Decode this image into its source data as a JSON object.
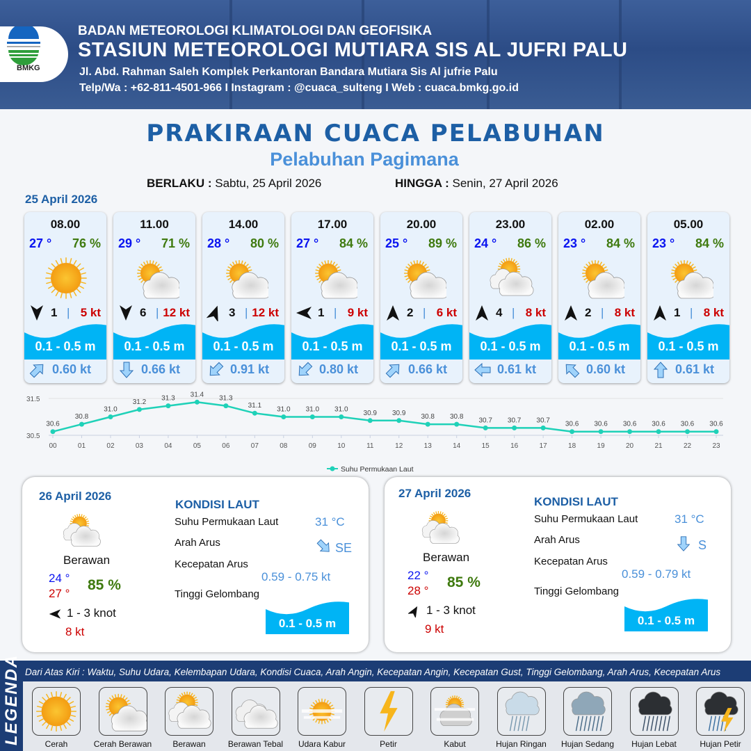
{
  "header": {
    "org": "BADAN METEOROLOGI KLIMATOLOGI DAN GEOFISIKA",
    "station": "STASIUN METEOROLOGI MUTIARA SIS AL JUFRI PALU",
    "address": "Jl. Abd. Rahman Saleh Komplek Perkantoran Bandara Mutiara Sis Al jufrie Palu",
    "contact": "Telp/Wa : +62-811-4501-966  I  Instagram : @cuaca_sulteng  I  Web : cuaca.bmkg.go.id",
    "logo_text": "BMKG"
  },
  "title": "PRAKIRAAN CUACA PELABUHAN",
  "subtitle": "Pelabuhan Pagimana",
  "validity": {
    "from_label": "BERLAKU :",
    "from": "Sabtu, 25 April 2026",
    "to_label": "HINGGA :",
    "to": "Senin, 27 April 2026"
  },
  "day1": {
    "date": "25 April 2026",
    "cards": [
      {
        "time": "08.00",
        "temp": "27 °",
        "hum": "76 %",
        "icon": "sun",
        "wind_dir": 180,
        "wind": "1",
        "gust": "5 kt",
        "wave": "0.1 - 0.5 m",
        "cur_dir": 45,
        "cur": "0.60 kt"
      },
      {
        "time": "11.00",
        "temp": "29 °",
        "hum": "71 %",
        "icon": "sun-cloud",
        "wind_dir": 180,
        "wind": "6",
        "gust": "12 kt",
        "wave": "0.1 - 0.5 m",
        "cur_dir": 180,
        "cur": "0.66 kt"
      },
      {
        "time": "14.00",
        "temp": "28 °",
        "hum": "80 %",
        "icon": "sun-cloud",
        "wind_dir": 20,
        "wind": "3",
        "gust": "12 kt",
        "wave": "0.1 - 0.5 m",
        "cur_dir": 225,
        "cur": "0.91 kt"
      },
      {
        "time": "17.00",
        "temp": "27 °",
        "hum": "84 %",
        "icon": "sun-cloud",
        "wind_dir": 270,
        "wind": "1",
        "gust": "9 kt",
        "wave": "0.1 - 0.5 m",
        "cur_dir": 225,
        "cur": "0.80 kt"
      },
      {
        "time": "20.00",
        "temp": "25 °",
        "hum": "89 %",
        "icon": "sun-cloud",
        "wind_dir": 0,
        "wind": "2",
        "gust": "6 kt",
        "wave": "0.1 - 0.5 m",
        "cur_dir": 45,
        "cur": "0.66 kt"
      },
      {
        "time": "23.00",
        "temp": "24 °",
        "hum": "86 %",
        "icon": "cloudy",
        "wind_dir": 0,
        "wind": "4",
        "gust": "8 kt",
        "wave": "0.1 - 0.5 m",
        "cur_dir": 270,
        "cur": "0.61 kt"
      },
      {
        "time": "02.00",
        "temp": "23 °",
        "hum": "84 %",
        "icon": "sun-cloud",
        "wind_dir": 0,
        "wind": "2",
        "gust": "8 kt",
        "wave": "0.1 - 0.5 m",
        "cur_dir": 315,
        "cur": "0.60 kt"
      },
      {
        "time": "05.00",
        "temp": "23 °",
        "hum": "84 %",
        "icon": "sun-cloud",
        "wind_dir": 0,
        "wind": "1",
        "gust": "8 kt",
        "wave": "0.1 - 0.5 m",
        "cur_dir": 0,
        "cur": "0.61 kt"
      }
    ]
  },
  "chart_data": {
    "type": "line",
    "x": [
      "00",
      "01",
      "02",
      "03",
      "04",
      "05",
      "06",
      "07",
      "08",
      "09",
      "10",
      "11",
      "12",
      "13",
      "14",
      "15",
      "16",
      "17",
      "18",
      "19",
      "20",
      "21",
      "22",
      "23"
    ],
    "series": [
      {
        "name": "Suhu Permukaan Laut",
        "values": [
          30.6,
          30.8,
          31.0,
          31.2,
          31.3,
          31.4,
          31.3,
          31.1,
          31.0,
          31.0,
          31.0,
          30.9,
          30.9,
          30.8,
          30.8,
          30.7,
          30.7,
          30.7,
          30.6,
          30.6,
          30.6,
          30.6,
          30.6,
          30.6
        ],
        "color": "#1fd1b8"
      }
    ],
    "yticks": [
      "31.5",
      "30.5"
    ],
    "ylim": [
      30.5,
      31.5
    ],
    "legend": "bottom",
    "grid": true
  },
  "days": [
    {
      "date": "26 April 2026",
      "cond": "Berawan",
      "tmin": "24 °",
      "tmax": "27 °",
      "hum": "85 %",
      "wind_dir": 270,
      "wind": "1 - 3 knot",
      "gust": "8 kt",
      "k_title": "KONDISI LAUT",
      "sst_label": "Suhu Permukaan Laut",
      "sst": "31 °C",
      "dir_label": "Arah Arus",
      "cur_dir_deg": 135,
      "cur_dir": "SE",
      "spd_label": "Kecepatan Arus",
      "spd": "0.59  - 0.75 kt",
      "wave_label": "Tinggi Gelombang",
      "wave": "0.1 - 0.5 m"
    },
    {
      "date": "27 April 2026",
      "cond": "Berawan",
      "tmin": "22 °",
      "tmax": "28 °",
      "hum": "85 %",
      "wind_dir": 30,
      "wind": "1 - 3 knot",
      "gust": "9 kt",
      "k_title": "KONDISI LAUT",
      "sst_label": "Suhu Permukaan Laut",
      "sst": "31 °C",
      "dir_label": "Arah Arus",
      "cur_dir_deg": 180,
      "cur_dir": "S",
      "spd_label": "Kecepatan Arus",
      "spd": "0.59  - 0.79 kt",
      "wave_label": "Tinggi Gelombang",
      "wave": "0.1 - 0.5 m"
    }
  ],
  "legend": {
    "title": "LEGENDA",
    "desc": "Dari Atas Kiri : Waktu, Suhu Udara, Kelembapan Udara, Kondisi Cuaca, Arah Angin, Kecepatan Angin, Kecepatan Gust, Tinggi Gelombang, Arah Arus, Kecepatan Arus",
    "items": [
      {
        "label": "Cerah",
        "icon": "sun"
      },
      {
        "label": "Cerah Berawan",
        "icon": "sun-cloud"
      },
      {
        "label": "Berawan",
        "icon": "cloudy"
      },
      {
        "label": "Berawan Tebal",
        "icon": "overcast"
      },
      {
        "label": "Udara Kabur",
        "icon": "haze"
      },
      {
        "label": "Petir",
        "icon": "lightning"
      },
      {
        "label": "Kabut",
        "icon": "fog"
      },
      {
        "label": "Hujan Ringan",
        "icon": "light-rain"
      },
      {
        "label": "Hujan Sedang",
        "icon": "moderate-rain"
      },
      {
        "label": "Hujan Lebat",
        "icon": "heavy-rain"
      },
      {
        "label": "Hujan Petir",
        "icon": "thunderstorm"
      }
    ]
  },
  "colors": {
    "title": "#1d5fa5",
    "temp": "#0a14f0",
    "humidity": "#3f7a0f",
    "gust": "#cc0000",
    "wave": "#00b4f5",
    "current": "#4a90d9"
  }
}
